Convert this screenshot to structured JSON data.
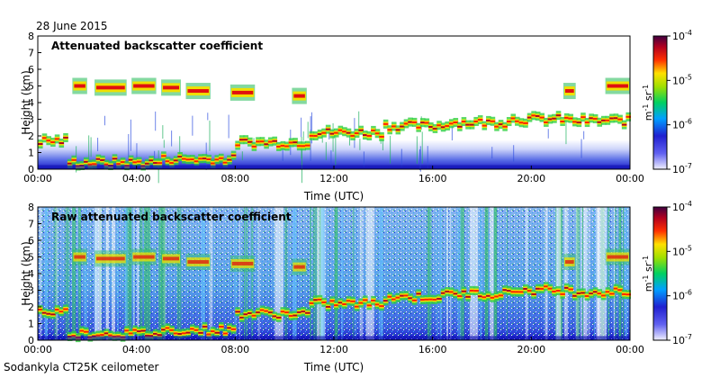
{
  "date_label": "28 June 2015",
  "instrument_label": "Sodankyla CT25K ceilometer",
  "chart_data": [
    {
      "type": "heatmap",
      "title": "Attenuated backscatter coefficient",
      "xlabel": "Time (UTC)",
      "ylabel": "Height (km)",
      "xticks": [
        "00:00",
        "04:00",
        "08:00",
        "12:00",
        "16:00",
        "20:00",
        "00:00"
      ],
      "xlim_hours": [
        0,
        24
      ],
      "yticks": [
        0,
        1,
        2,
        3,
        4,
        5,
        6,
        7,
        8
      ],
      "ylim_km": [
        0,
        8
      ],
      "colorbar": {
        "label_base": "m",
        "label_exp1": "-1",
        "label_mid": " sr",
        "label_exp2": "-1",
        "ticks": [
          {
            "base": "10",
            "exp": "-4"
          },
          {
            "base": "10",
            "exp": "-5"
          },
          {
            "base": "10",
            "exp": "-6"
          },
          {
            "base": "10",
            "exp": "-7"
          }
        ],
        "scale": "log",
        "range": [
          1e-07,
          0.0001
        ],
        "colors": [
          "#f0f0ff",
          "#3030e0",
          "#00b0ff",
          "#00d000",
          "#f0e000",
          "#ff2000",
          "#c00000",
          "#400040"
        ]
      },
      "cloud_layers": [
        {
          "from_hours": 0.0,
          "to_hours": 1.2,
          "height_km": 1.7
        },
        {
          "from_hours": 1.2,
          "to_hours": 5.0,
          "height_km": 0.4
        },
        {
          "from_hours": 5.0,
          "to_hours": 8.0,
          "height_km": 0.6
        },
        {
          "from_hours": 8.0,
          "to_hours": 11.0,
          "height_km": 1.6
        },
        {
          "from_hours": 11.0,
          "to_hours": 14.0,
          "height_km": 2.2
        },
        {
          "from_hours": 14.0,
          "to_hours": 16.5,
          "height_km": 2.6
        },
        {
          "from_hours": 16.5,
          "to_hours": 19.0,
          "height_km": 2.8
        },
        {
          "from_hours": 19.0,
          "to_hours": 21.5,
          "height_km": 3.0
        },
        {
          "from_hours": 21.5,
          "to_hours": 24.0,
          "height_km": 2.9
        }
      ],
      "mid_level_clouds": [
        {
          "from_hours": 1.4,
          "to_hours": 2.0,
          "height_km": 5.0
        },
        {
          "from_hours": 2.3,
          "to_hours": 3.6,
          "height_km": 4.9
        },
        {
          "from_hours": 3.8,
          "to_hours": 4.8,
          "height_km": 5.0
        },
        {
          "from_hours": 5.0,
          "to_hours": 5.8,
          "height_km": 4.9
        },
        {
          "from_hours": 6.0,
          "to_hours": 7.0,
          "height_km": 4.7
        },
        {
          "from_hours": 7.8,
          "to_hours": 8.8,
          "height_km": 4.6
        },
        {
          "from_hours": 10.3,
          "to_hours": 10.9,
          "height_km": 4.4
        },
        {
          "from_hours": 21.3,
          "to_hours": 21.8,
          "height_km": 4.7
        },
        {
          "from_hours": 23.0,
          "to_hours": 24.0,
          "height_km": 5.0
        }
      ]
    },
    {
      "type": "heatmap",
      "title": "Raw attenuated backscatter coefficient",
      "xlabel": "Time (UTC)",
      "ylabel": "Height (km)",
      "xticks": [
        "00:00",
        "04:00",
        "08:00",
        "12:00",
        "16:00",
        "20:00",
        "00:00"
      ],
      "xlim_hours": [
        0,
        24
      ],
      "yticks": [
        0,
        1,
        2,
        3,
        4,
        5,
        6,
        7,
        8
      ],
      "ylim_km": [
        0,
        8
      ],
      "colorbar": {
        "label_base": "m",
        "label_exp1": "-1",
        "label_mid": " sr",
        "label_exp2": "-1",
        "ticks": [
          {
            "base": "10",
            "exp": "-4"
          },
          {
            "base": "10",
            "exp": "-5"
          },
          {
            "base": "10",
            "exp": "-6"
          },
          {
            "base": "10",
            "exp": "-7"
          }
        ],
        "scale": "log",
        "range": [
          1e-07,
          0.0001
        ],
        "colors": [
          "#f0f0ff",
          "#3030e0",
          "#00b0ff",
          "#00d000",
          "#f0e000",
          "#ff2000",
          "#c00000",
          "#400040"
        ]
      }
    }
  ]
}
